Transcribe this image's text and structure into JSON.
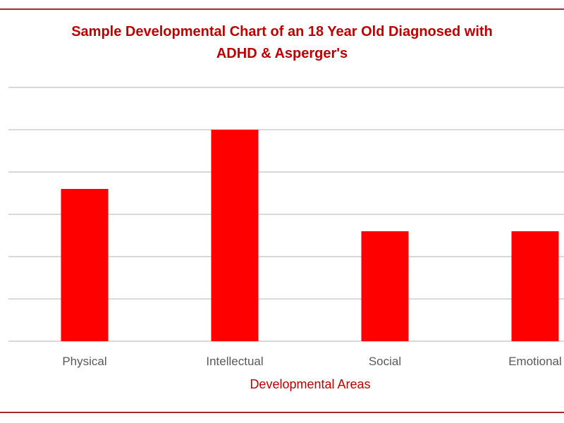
{
  "chart_data": {
    "type": "bar",
    "title": [
      "Sample Developmental Chart of an 18 Year Old Diagnosed with",
      "ADHD & Asperger's"
    ],
    "xlabel": "Developmental Areas",
    "ylabel": "",
    "categories": [
      "Physical",
      "Intellectual",
      "Social",
      "Emotional"
    ],
    "values": [
      3.6,
      5.0,
      2.6,
      2.6
    ],
    "ylim": [
      0,
      6
    ],
    "grid": true,
    "y_tick_labels_visible": false,
    "legend": "none"
  },
  "colors": {
    "bar": "#ff0000",
    "title": "#c00000",
    "xlabel": "#c00000",
    "tick_label": "#595959",
    "grid": "#d9d9d9",
    "frame": "#a52a2a"
  }
}
